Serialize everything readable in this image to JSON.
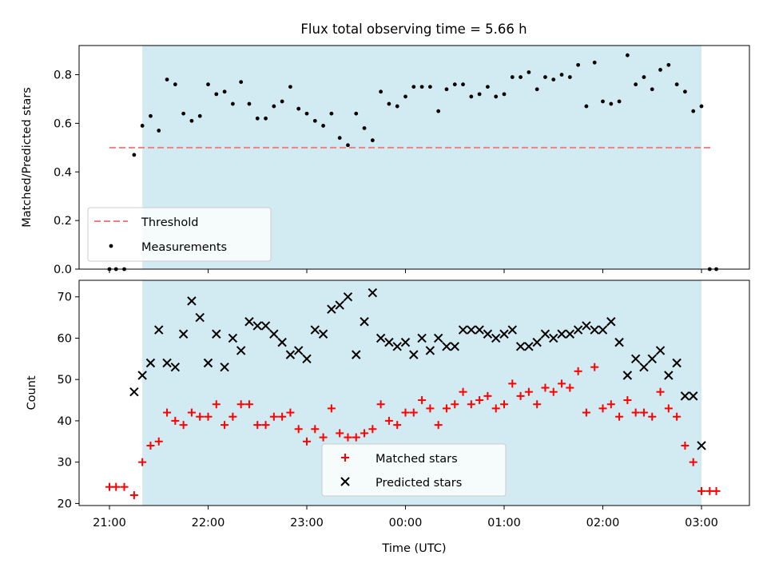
{
  "title": "Flux total observing time = 5.66 h",
  "colors": {
    "shade": "#add8e6",
    "threshold": "#f08080",
    "matched": "#ff0000",
    "predicted": "#000000",
    "measurement": "#000000"
  },
  "chart_data": [
    {
      "type": "scatter",
      "ylabel": "Matched/Predicted stars",
      "ylim": [
        0,
        0.92
      ],
      "yticks": [
        "0.0",
        "0.2",
        "0.4",
        "0.6",
        "0.8"
      ],
      "xlim": [
        "20:50",
        "03:30"
      ],
      "shaded_span": [
        "21:20",
        "03:00"
      ],
      "threshold": {
        "value": 0.5,
        "from": "21:00",
        "to": "03:07"
      },
      "legend": {
        "position": "lower-left",
        "entries": [
          "Threshold",
          "Measurements"
        ]
      },
      "series": [
        {
          "name": "Measurements",
          "x": [
            "21:00",
            "21:04",
            "21:09",
            "21:15",
            "21:20",
            "21:25",
            "21:30",
            "21:35",
            "21:40",
            "21:45",
            "21:50",
            "21:55",
            "22:00",
            "22:05",
            "22:10",
            "22:15",
            "22:20",
            "22:25",
            "22:30",
            "22:35",
            "22:40",
            "22:45",
            "22:50",
            "22:55",
            "23:00",
            "23:05",
            "23:10",
            "23:15",
            "23:20",
            "23:25",
            "23:30",
            "23:35",
            "23:40",
            "23:45",
            "23:50",
            "23:55",
            "00:00",
            "00:05",
            "00:10",
            "00:15",
            "00:20",
            "00:25",
            "00:30",
            "00:35",
            "00:40",
            "00:45",
            "00:50",
            "00:55",
            "01:00",
            "01:05",
            "01:10",
            "01:15",
            "01:20",
            "01:25",
            "01:30",
            "01:35",
            "01:40",
            "01:45",
            "01:50",
            "01:55",
            "02:00",
            "02:05",
            "02:10",
            "02:15",
            "02:20",
            "02:25",
            "02:30",
            "02:35",
            "02:40",
            "02:45",
            "02:50",
            "02:55",
            "03:00",
            "03:05",
            "03:09"
          ],
          "y": [
            0.0,
            0.0,
            0.0,
            0.47,
            0.59,
            0.63,
            0.57,
            0.78,
            0.76,
            0.64,
            0.61,
            0.63,
            0.76,
            0.72,
            0.73,
            0.68,
            0.77,
            0.68,
            0.62,
            0.62,
            0.67,
            0.69,
            0.75,
            0.66,
            0.64,
            0.61,
            0.59,
            0.64,
            0.54,
            0.51,
            0.64,
            0.58,
            0.53,
            0.73,
            0.68,
            0.67,
            0.71,
            0.75,
            0.75,
            0.75,
            0.65,
            0.74,
            0.76,
            0.76,
            0.71,
            0.72,
            0.75,
            0.71,
            0.72,
            0.79,
            0.79,
            0.81,
            0.74,
            0.79,
            0.78,
            0.8,
            0.79,
            0.84,
            0.67,
            0.85,
            0.69,
            0.68,
            0.69,
            0.88,
            0.76,
            0.79,
            0.74,
            0.82,
            0.84,
            0.76,
            0.73,
            0.65,
            0.67,
            0.0,
            0.0
          ]
        }
      ]
    },
    {
      "type": "scatter",
      "ylabel": "Count",
      "xlabel": "Time (UTC)",
      "ylim": [
        19.5,
        74
      ],
      "yticks": [
        "20",
        "30",
        "40",
        "50",
        "60",
        "70"
      ],
      "xticks": [
        "21:00",
        "22:00",
        "23:00",
        "00:00",
        "01:00",
        "02:00",
        "03:00"
      ],
      "legend": {
        "position": "lower-center",
        "entries": [
          "Matched stars",
          "Predicted stars"
        ]
      },
      "series": [
        {
          "name": "Matched stars",
          "x": [
            "21:00",
            "21:04",
            "21:09",
            "21:15",
            "21:20",
            "21:25",
            "21:30",
            "21:35",
            "21:40",
            "21:45",
            "21:50",
            "21:55",
            "22:00",
            "22:05",
            "22:10",
            "22:15",
            "22:20",
            "22:25",
            "22:30",
            "22:35",
            "22:40",
            "22:45",
            "22:50",
            "22:55",
            "23:00",
            "23:05",
            "23:10",
            "23:15",
            "23:20",
            "23:25",
            "23:30",
            "23:35",
            "23:40",
            "23:45",
            "23:50",
            "23:55",
            "00:00",
            "00:05",
            "00:10",
            "00:15",
            "00:20",
            "00:25",
            "00:30",
            "00:35",
            "00:40",
            "00:45",
            "00:50",
            "00:55",
            "01:00",
            "01:05",
            "01:10",
            "01:15",
            "01:20",
            "01:25",
            "01:30",
            "01:35",
            "01:40",
            "01:45",
            "01:50",
            "01:55",
            "02:00",
            "02:05",
            "02:10",
            "02:15",
            "02:20",
            "02:25",
            "02:30",
            "02:35",
            "02:40",
            "02:45",
            "02:50",
            "02:55",
            "03:00",
            "03:05",
            "03:09"
          ],
          "y": [
            24,
            24,
            24,
            22,
            30,
            34,
            35,
            42,
            40,
            39,
            42,
            41,
            41,
            44,
            39,
            41,
            44,
            44,
            39,
            39,
            41,
            41,
            42,
            38,
            35,
            38,
            36,
            43,
            37,
            36,
            36,
            37,
            38,
            44,
            40,
            39,
            42,
            42,
            45,
            43,
            39,
            43,
            44,
            47,
            44,
            45,
            46,
            43,
            44,
            49,
            46,
            47,
            44,
            48,
            47,
            49,
            48,
            52,
            42,
            53,
            43,
            44,
            41,
            45,
            42,
            42,
            41,
            47,
            43,
            41,
            34,
            30,
            23,
            23,
            23
          ]
        },
        {
          "name": "Predicted stars",
          "x": [
            "21:15",
            "21:20",
            "21:25",
            "21:30",
            "21:35",
            "21:40",
            "21:45",
            "21:50",
            "21:55",
            "22:00",
            "22:05",
            "22:10",
            "22:15",
            "22:20",
            "22:25",
            "22:30",
            "22:35",
            "22:40",
            "22:45",
            "22:50",
            "22:55",
            "23:00",
            "23:05",
            "23:10",
            "23:15",
            "23:20",
            "23:25",
            "23:30",
            "23:35",
            "23:40",
            "23:45",
            "23:50",
            "23:55",
            "00:00",
            "00:05",
            "00:10",
            "00:15",
            "00:20",
            "00:25",
            "00:30",
            "00:35",
            "00:40",
            "00:45",
            "00:50",
            "00:55",
            "01:00",
            "01:05",
            "01:10",
            "01:15",
            "01:20",
            "01:25",
            "01:30",
            "01:35",
            "01:40",
            "01:45",
            "01:50",
            "01:55",
            "02:00",
            "02:05",
            "02:10",
            "02:15",
            "02:20",
            "02:25",
            "02:30",
            "02:35",
            "02:40",
            "02:45",
            "02:50",
            "02:55",
            "03:00"
          ],
          "y": [
            47,
            51,
            54,
            62,
            54,
            53,
            61,
            69,
            65,
            54,
            61,
            53,
            60,
            57,
            64,
            63,
            63,
            61,
            59,
            56,
            57,
            55,
            62,
            61,
            67,
            68,
            70,
            56,
            64,
            71,
            60,
            59,
            58,
            59,
            56,
            60,
            57,
            60,
            58,
            58,
            62,
            62,
            62,
            61,
            60,
            61,
            62,
            58,
            58,
            59,
            61,
            60,
            61,
            61,
            62,
            63,
            62,
            62,
            64,
            59,
            51,
            55,
            53,
            55,
            57,
            51,
            54,
            46,
            46,
            34
          ]
        }
      ]
    }
  ]
}
